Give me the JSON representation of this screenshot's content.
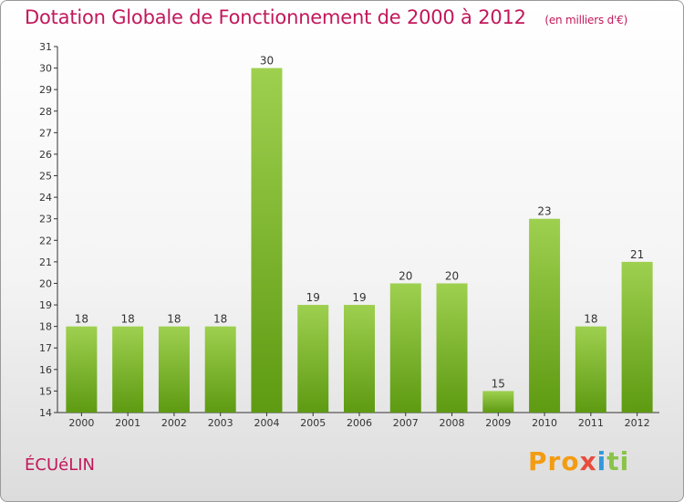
{
  "header": {
    "title": "Dotation Globale de Fonctionnement de 2000 à 2012",
    "subtitle": "(en milliers d'€)"
  },
  "footer": {
    "commune": "ÉCUéLIN",
    "logo_parts": [
      "Pro",
      "x",
      "i",
      "ti"
    ]
  },
  "colors": {
    "accent": "#c2185b",
    "bar_top": "#9ed04f",
    "bar_bottom": "#5e9a12"
  },
  "chart_data": {
    "type": "bar",
    "categories": [
      "2000",
      "2001",
      "2002",
      "2003",
      "2004",
      "2005",
      "2006",
      "2007",
      "2008",
      "2009",
      "2010",
      "2011",
      "2012"
    ],
    "values": [
      18,
      18,
      18,
      18,
      30,
      19,
      19,
      20,
      20,
      15,
      23,
      18,
      21
    ],
    "title": "Dotation Globale de Fonctionnement de 2000 à 2012",
    "subtitle": "(en milliers d'€)",
    "xlabel": "",
    "ylabel": "",
    "ylim": [
      14,
      31
    ],
    "yticks": [
      14,
      15,
      16,
      17,
      18,
      19,
      20,
      21,
      22,
      23,
      24,
      25,
      26,
      27,
      28,
      29,
      30,
      31
    ],
    "grid": false,
    "legend": "none"
  }
}
